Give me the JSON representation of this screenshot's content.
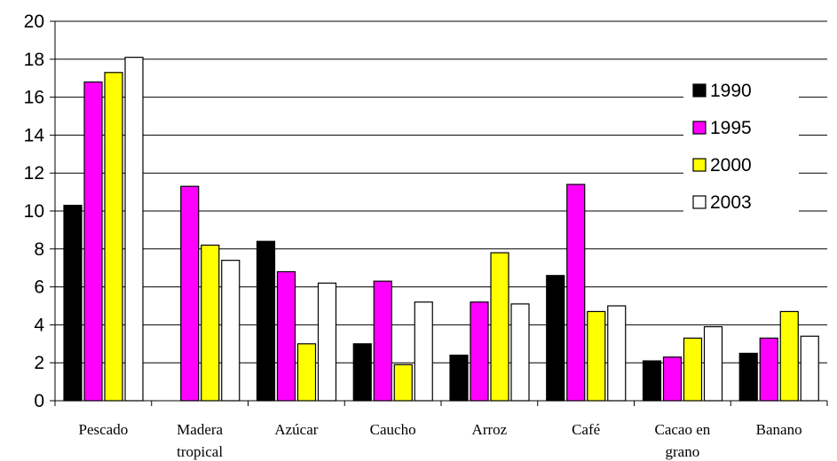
{
  "chart_data": {
    "type": "bar",
    "title": "",
    "xlabel": "",
    "ylabel": "",
    "ylim": [
      0,
      20
    ],
    "yticks": [
      0,
      2,
      4,
      6,
      8,
      10,
      12,
      14,
      16,
      18,
      20
    ],
    "grid": true,
    "legend_position": "right",
    "categories": [
      [
        "Pescado"
      ],
      [
        "Madera",
        "tropical"
      ],
      [
        "Azúcar"
      ],
      [
        "Caucho"
      ],
      [
        "Arroz"
      ],
      [
        "Café"
      ],
      [
        "Cacao en",
        "grano"
      ],
      [
        "Banano"
      ]
    ],
    "series": [
      {
        "name": "1990",
        "color": "#000000",
        "values": [
          10.3,
          null,
          8.4,
          3.0,
          2.4,
          6.6,
          2.1,
          2.5
        ]
      },
      {
        "name": "1995",
        "color": "#ff00ff",
        "values": [
          16.8,
          11.3,
          6.8,
          6.3,
          5.2,
          11.4,
          2.3,
          3.3
        ]
      },
      {
        "name": "2000",
        "color": "#ffff00",
        "values": [
          17.3,
          8.2,
          3.0,
          1.9,
          7.8,
          4.7,
          3.3,
          4.7
        ]
      },
      {
        "name": "2003",
        "color": "#ffffff",
        "values": [
          18.1,
          7.4,
          6.2,
          5.2,
          5.1,
          5.0,
          3.9,
          3.4
        ]
      }
    ]
  }
}
